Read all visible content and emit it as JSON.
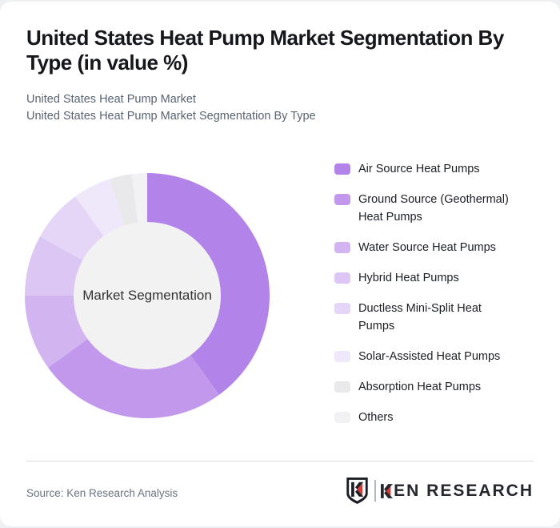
{
  "page": {
    "background": "#eef0f2",
    "card_background": "#ffffff"
  },
  "header": {
    "title": "United States Heat Pump Market Segmentation By Type (in value %)",
    "subtitle1": "United States Heat Pump Market",
    "subtitle2": "United States Heat Pump Market Segmentation By Type"
  },
  "chart_data": {
    "type": "pie",
    "variant": "donut",
    "title": "United States Heat Pump Market Segmentation By Type (in value %)",
    "center_label": "Market Segmentation",
    "center_bg": "#f2f2f2",
    "legend_position": "right",
    "start_angle_deg": 0,
    "unit": "value %",
    "segments": [
      {
        "label": "Air Source Heat Pumps",
        "value": 40,
        "color": "#b283e8"
      },
      {
        "label": "Ground Source (Geothermal) Heat Pumps",
        "value": 25,
        "color": "#c198ec"
      },
      {
        "label": "Water Source Heat Pumps",
        "value": 10,
        "color": "#d2b4f1"
      },
      {
        "label": "Hybrid Heat Pumps",
        "value": 8,
        "color": "#dcc6f4"
      },
      {
        "label": "Ductless Mini-Split Heat Pumps",
        "value": 7,
        "color": "#e5d6f8"
      },
      {
        "label": "Solar-Assisted Heat Pumps",
        "value": 5,
        "color": "#efe8fb"
      },
      {
        "label": "Absorption Heat Pumps",
        "value": 3,
        "color": "#e9e8ea"
      },
      {
        "label": "Others",
        "value": 2,
        "color": "#f2f1f3"
      }
    ]
  },
  "footer": {
    "source": "Source: Ken Research Analysis",
    "brand": {
      "wordmark_k": "K",
      "wordmark_rest": "EN RESEARCH",
      "accent_color": "#d93a35",
      "text_color": "#23262d"
    }
  }
}
